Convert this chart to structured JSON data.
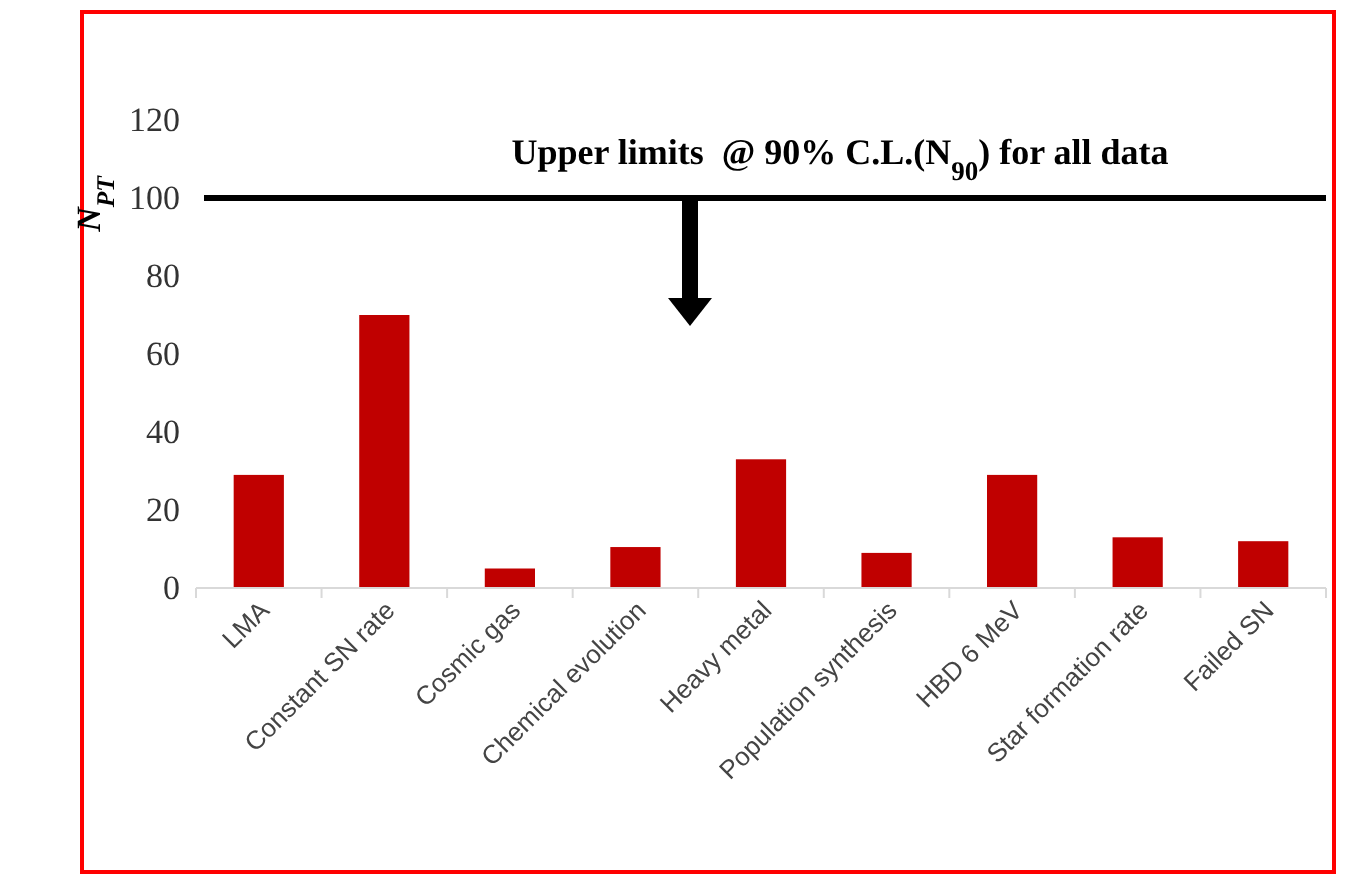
{
  "chart_data": {
    "type": "bar",
    "categories": [
      "LMA",
      "Constant SN rate",
      "Cosmic gas",
      "Chemical evolution",
      "Heavy metal",
      "Population synthesis",
      "HBD 6 MeV",
      "Star formation rate",
      "Failed SN"
    ],
    "values": [
      29,
      70,
      5,
      10.5,
      33,
      9,
      29,
      13,
      12
    ],
    "color": "#c00000",
    "ylabel": "N$_{PT}$",
    "ylim": [
      0,
      120
    ],
    "yticks": [
      0,
      20,
      40,
      60,
      80,
      100,
      120
    ],
    "grid": false,
    "ref_lines": [
      {
        "axis": "y",
        "value": 100,
        "label": "Upper limits  @ 90% C.L.(N$_{90}$) for all data",
        "color": "#000000"
      }
    ]
  }
}
